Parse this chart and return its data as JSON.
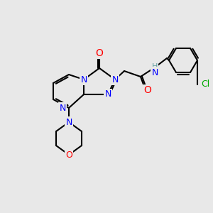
{
  "bg_color": "#e8e8e8",
  "atom_colors": {
    "C": "#000000",
    "N": "#0000ff",
    "O": "#ff0000",
    "Cl": "#00aa00",
    "H": "#5f9ea0"
  },
  "bond_color": "#000000",
  "figsize": [
    3.0,
    3.0
  ],
  "dpi": 100
}
